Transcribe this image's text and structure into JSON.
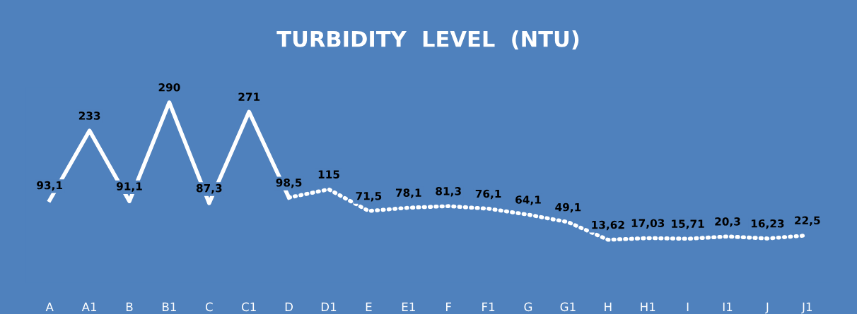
{
  "chart_data": {
    "type": "line",
    "title": "TURBIDITY  LEVEL  (NTU)",
    "categories": [
      "A",
      "A1",
      "B",
      "B1",
      "C",
      "C1",
      "D",
      "D1",
      "E",
      "E1",
      "F",
      "F1",
      "G",
      "G1",
      "H",
      "H1",
      "I",
      "I1",
      "J",
      "J1"
    ],
    "series": [
      {
        "color": "#ffffff",
        "line_style": "solid",
        "values": [
          93.1,
          233,
          91.1,
          290,
          87.3,
          271,
          98.5,
          null,
          null,
          null,
          null,
          null,
          null,
          null,
          null,
          null,
          null,
          null,
          null,
          null
        ],
        "value_labels": [
          "93,1",
          "233",
          "91,1",
          "290",
          "87,3",
          "271",
          "98,5",
          null,
          null,
          null,
          null,
          null,
          null,
          null,
          null,
          null,
          null,
          null,
          null,
          null
        ]
      },
      {
        "color": "#ffffff",
        "line_style": "dotted",
        "values": [
          null,
          null,
          null,
          null,
          null,
          null,
          98.5,
          115,
          71.5,
          78.1,
          81.3,
          76.1,
          64.1,
          49.1,
          13.62,
          17.03,
          15.71,
          20.3,
          16.23,
          22.5
        ],
        "value_labels": [
          null,
          null,
          null,
          null,
          null,
          null,
          null,
          "115",
          "71,5",
          "78,1",
          "81,3",
          "76,1",
          "64,1",
          "49,1",
          "13,62",
          "17,03",
          "15,71",
          "20,3",
          "16,23",
          "22,5"
        ]
      }
    ],
    "grid": false,
    "legend": false
  }
}
